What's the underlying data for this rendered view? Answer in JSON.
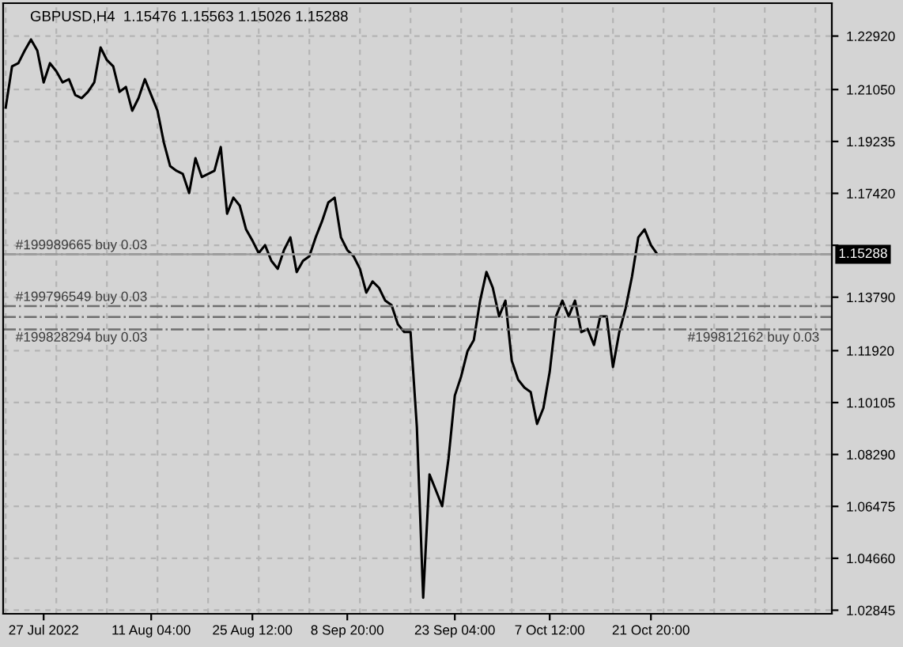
{
  "chart_data": {
    "type": "line",
    "title": "GBPUSD,H4  1.15476 1.15563 1.15026 1.15288",
    "categories": [
      null,
      null,
      null,
      null,
      null,
      null,
      "27 Jul 2022",
      null,
      null,
      null,
      null,
      null,
      null,
      null,
      null,
      null,
      null,
      null,
      null,
      null,
      null,
      null,
      null,
      "11 Aug 04:00",
      null,
      null,
      null,
      null,
      null,
      null,
      null,
      null,
      null,
      null,
      null,
      null,
      null,
      null,
      null,
      "25 Aug 12:00",
      null,
      null,
      null,
      null,
      null,
      null,
      null,
      null,
      null,
      null,
      null,
      null,
      null,
      null,
      "8 Sep 20:00",
      null,
      null,
      null,
      null,
      null,
      null,
      null,
      null,
      null,
      null,
      null,
      null,
      null,
      null,
      null,
      null,
      "23 Sep 04:00",
      null,
      null,
      null,
      null,
      null,
      null,
      null,
      null,
      null,
      null,
      null,
      null,
      null,
      null,
      "7 Oct 12:00",
      null,
      null,
      null,
      null,
      null,
      null,
      null,
      null,
      null,
      null,
      null,
      null,
      null,
      null,
      null,
      "21 Oct 20:00",
      null,
      null,
      null,
      null,
      null,
      null,
      null,
      null,
      null,
      null,
      null,
      null,
      null,
      null,
      null,
      null,
      null,
      null,
      null,
      null,
      null,
      null,
      null,
      null,
      null,
      null,
      null,
      null
    ],
    "series": [
      {
        "color": "#000000",
        "values": [
          1.2042,
          1.2186,
          1.2197,
          1.2241,
          1.228,
          1.2241,
          1.213,
          1.2197,
          1.2169,
          1.213,
          1.2141,
          1.2086,
          1.2075,
          1.2097,
          1.213,
          1.2252,
          1.2208,
          1.2186,
          1.2097,
          1.2114,
          1.2031,
          1.2075,
          1.2141,
          1.2086,
          1.2031,
          1.192,
          1.1837,
          1.1821,
          1.181,
          1.1743,
          1.1865,
          1.1799,
          1.181,
          1.1821,
          1.1904,
          1.1671,
          1.1727,
          1.1699,
          1.1616,
          1.1577,
          1.1533,
          1.1561,
          1.1506,
          1.1478,
          1.1544,
          1.1588,
          1.1467,
          1.1506,
          1.1522,
          1.1588,
          1.1644,
          1.171,
          1.1727,
          1.1588,
          1.1544,
          1.1522,
          1.1478,
          1.1395,
          1.1434,
          1.1412,
          1.1367,
          1.1351,
          1.1284,
          1.1257,
          1.1257,
          1.0925,
          1.0328,
          1.0759,
          1.0704,
          1.0648,
          1.0814,
          1.1035,
          1.1102,
          1.119,
          1.1229,
          1.1367,
          1.1467,
          1.1412,
          1.1312,
          1.1367,
          1.1157,
          1.1091,
          1.1063,
          1.1047,
          1.0936,
          1.0991,
          1.1118,
          1.1312,
          1.1367,
          1.1312,
          1.1367,
          1.1257,
          1.1268,
          1.1212,
          1.1312,
          1.1312,
          1.1135,
          1.1257,
          1.134,
          1.145,
          1.1588,
          1.1616,
          1.1561,
          1.1529,
          null,
          null,
          null,
          null,
          null,
          null,
          null,
          null,
          null,
          null,
          null,
          null,
          null,
          null,
          null,
          null,
          null,
          null,
          null,
          null,
          null,
          null,
          null,
          null,
          null,
          null,
          null
        ]
      }
    ],
    "ylim": [
      1.0272,
      1.2407
    ],
    "yticks": [
      {
        "value": 1.2292,
        "label": "1.22920"
      },
      {
        "value": 1.2105,
        "label": "1.21050"
      },
      {
        "value": 1.19235,
        "label": "1.19235"
      },
      {
        "value": 1.1742,
        "label": "1.17420"
      },
      {
        "value": 1.15605,
        "label": null
      },
      {
        "value": 1.1379,
        "label": "1.13790"
      },
      {
        "value": 1.1192,
        "label": "1.11920"
      },
      {
        "value": 1.10105,
        "label": "1.10105"
      },
      {
        "value": 1.0829,
        "label": "1.08290"
      },
      {
        "value": 1.06475,
        "label": "1.06475"
      },
      {
        "value": 1.0466,
        "label": "1.04660"
      },
      {
        "value": 1.02845,
        "label": "1.02845"
      }
    ],
    "ref_lines": [
      {
        "axis": "y",
        "value": 1.1529,
        "label": "#199989665 buy 0.03",
        "color": "#6e6e6e",
        "line_style": "dashdot"
      },
      {
        "axis": "y",
        "value": 1.1348,
        "label": "#199796549 buy 0.03",
        "color": "#6e6e6e",
        "line_style": "dashdot"
      },
      {
        "axis": "y",
        "value": 1.131,
        "label": "#199812162 buy 0.03",
        "color": "#6e6e6e",
        "line_style": "dashdot"
      },
      {
        "axis": "y",
        "value": 1.1266,
        "label": "#199828294 buy 0.03",
        "color": "#6e6e6e",
        "line_style": "dashdot"
      },
      {
        "axis": "y",
        "value": 1.15288,
        "label": "1.15288",
        "color": "#a0a0a0",
        "line_style": "solid"
      }
    ],
    "grid": true,
    "line_style": "solid",
    "marker": "none"
  }
}
